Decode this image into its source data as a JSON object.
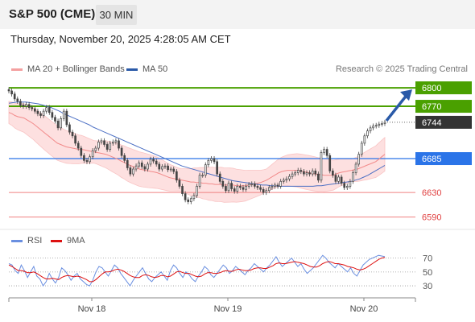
{
  "header": {
    "title": "S&P 500 (CME)",
    "timeframe": "30 MIN",
    "datetime": "Thursday, November 20, 2025 4:28:05 AM CET"
  },
  "legend": {
    "bb": "MA 20 + Bollinger Bands",
    "ma50": "MA 50",
    "rsi": "RSI",
    "rsi_ma": "9MA",
    "credit": "Research © 2025 Trading Central"
  },
  "colors": {
    "up": "#4a4a4a",
    "down": "#4a4a4a",
    "band": "#fde0e0",
    "ma20": "#f28a8a",
    "ma50": "#4b6fc4",
    "green": "#4aa000",
    "blue_level": "#2b74e8",
    "red_level": "#f08080",
    "last": "#333333",
    "rsi": "#6a8fe0",
    "rsi_ma": "#dd1111"
  },
  "chart_data": [
    {
      "type": "candlestick",
      "x_ticks": [
        "Nov 18",
        "Nov 19",
        "Nov 20"
      ],
      "ylim": [
        6583,
        6808
      ],
      "levels": [
        {
          "value": 6800,
          "label": "6800",
          "kind": "resistance"
        },
        {
          "value": 6770,
          "label": "6770",
          "kind": "resistance"
        },
        {
          "value": 6744,
          "label": "6744",
          "kind": "last"
        },
        {
          "value": 6685,
          "label": "6685",
          "kind": "pivot"
        },
        {
          "value": 6630,
          "label": "6630",
          "kind": "support"
        },
        {
          "value": 6590,
          "label": "6590",
          "kind": "support"
        }
      ],
      "closes": [
        6795,
        6790,
        6782,
        6778,
        6772,
        6770,
        6773,
        6768,
        6766,
        6762,
        6758,
        6755,
        6762,
        6768,
        6760,
        6752,
        6746,
        6735,
        6750,
        6762,
        6740,
        6728,
        6722,
        6710,
        6702,
        6690,
        6682,
        6680,
        6688,
        6698,
        6702,
        6712,
        6714,
        6708,
        6700,
        6710,
        6712,
        6714,
        6702,
        6690,
        6682,
        6670,
        6660,
        6668,
        6673,
        6678,
        6672,
        6668,
        6676,
        6684,
        6681,
        6676,
        6668,
        6672,
        6673,
        6667,
        6668,
        6664,
        6650,
        6640,
        6628,
        6618,
        6615,
        6620,
        6625,
        6640,
        6658,
        6658,
        6675,
        6682,
        6685,
        6680,
        6660,
        6648,
        6640,
        6633,
        6645,
        6636,
        6632,
        6640,
        6638,
        6635,
        6640,
        6643,
        6644,
        6640,
        6638,
        6635,
        6630,
        6633,
        6638,
        6640,
        6642,
        6640,
        6648,
        6650,
        6652,
        6656,
        6660,
        6662,
        6666,
        6664,
        6660,
        6662,
        6660,
        6665,
        6660,
        6650,
        6695,
        6700,
        6690,
        6665,
        6658,
        6648,
        6655,
        6645,
        6638,
        6640,
        6648,
        6662,
        6676,
        6692,
        6710,
        6722,
        6730,
        6735,
        6738,
        6739,
        6741,
        6742,
        6744
      ],
      "ma20": [
        6760,
        6758,
        6755,
        6753,
        6752,
        6751,
        6748,
        6745,
        6742,
        6738,
        6734,
        6730,
        6726,
        6722,
        6718,
        6714,
        6710,
        6708,
        6706,
        6704,
        6703,
        6702,
        6701,
        6700,
        6700,
        6699,
        6698,
        6697,
        6696,
        6695,
        6694,
        6693,
        6692,
        6690,
        6688,
        6686,
        6684,
        6681,
        6679,
        6676,
        6674,
        6672,
        6670,
        6668,
        6667,
        6666,
        6665,
        6664,
        6663,
        6662,
        6660,
        6658,
        6656,
        6654,
        6653,
        6652,
        6651,
        6650,
        6649,
        6648,
        6647,
        6647,
        6646,
        6646,
        6645,
        6645,
        6644,
        6644,
        6643,
        6643,
        6643,
        6642,
        6642,
        6642,
        6642,
        6641,
        6641,
        6641,
        6641,
        6642,
        6643,
        6644,
        6645,
        6646,
        6648,
        6650,
        6653,
        6656,
        6659,
        6662,
        6664,
        6665,
        6666,
        6666,
        6666,
        6666,
        6665,
        6664,
        6663,
        6662,
        6661,
        6660,
        6659,
        6659,
        6658,
        6658,
        6658,
        6658,
        6660,
        6662,
        6663,
        6664,
        6665,
        6666,
        6667,
        6668,
        6670,
        6672,
        6674,
        6676,
        6678,
        6680,
        6684,
        6688,
        6692
      ],
      "ma50": [
        6775,
        6776,
        6777,
        6777,
        6777,
        6776,
        6775,
        6774,
        6772,
        6770,
        6768,
        6765,
        6762,
        6758,
        6755,
        6752,
        6749,
        6746,
        6743,
        6740,
        6736,
        6733,
        6730,
        6727,
        6724,
        6721,
        6718,
        6715,
        6712,
        6709,
        6706,
        6703,
        6700,
        6697,
        6694,
        6691,
        6688,
        6685,
        6682,
        6679,
        6676,
        6673,
        6671,
        6669,
        6667,
        6665,
        6663,
        6661,
        6659,
        6657,
        6655,
        6653,
        6651,
        6649,
        6648,
        6647,
        6646,
        6645,
        6644,
        6643,
        6642,
        6642,
        6641,
        6641,
        6640,
        6640,
        6640,
        6640,
        6640,
        6640,
        6640,
        6640,
        6640,
        6641,
        6641,
        6642,
        6643,
        6644,
        6645,
        6646,
        6647,
        6648,
        6650,
        6652,
        6655,
        6658,
        6662,
        6666,
        6670,
        6674
      ]
    },
    {
      "type": "line",
      "name_series": [
        "RSI",
        "9MA"
      ],
      "y_ticks": [
        70,
        50,
        30
      ],
      "ylim": [
        15,
        80
      ],
      "rsi": [
        62,
        60,
        52,
        48,
        60,
        52,
        42,
        50,
        58,
        44,
        40,
        30,
        36,
        48,
        40,
        34,
        42,
        56,
        52,
        46,
        38,
        44,
        48,
        40,
        36,
        32,
        30,
        38,
        50,
        58,
        56,
        50,
        44,
        52,
        60,
        56,
        48,
        42,
        36,
        30,
        38,
        44,
        50,
        56,
        48,
        40,
        36,
        42,
        46,
        50,
        44,
        38,
        52,
        60,
        56,
        48,
        42,
        50,
        46,
        40,
        36,
        44,
        50,
        58,
        54,
        46,
        42,
        48,
        54,
        60,
        56,
        48,
        52,
        58,
        54,
        50,
        46,
        52,
        56,
        62,
        58,
        54,
        50,
        56,
        60,
        66,
        72,
        64,
        58,
        62,
        66,
        70,
        64,
        58,
        62,
        54,
        48,
        52,
        56,
        62,
        68,
        74,
        70,
        64,
        60,
        56,
        62,
        58,
        54,
        50,
        56,
        48,
        44,
        52,
        60,
        64,
        68,
        70,
        72,
        74,
        73,
        72
      ],
      "rsi_ma": [
        60,
        58,
        55,
        52,
        52,
        51,
        49,
        49,
        50,
        48,
        45,
        42,
        40,
        40,
        41,
        40,
        39,
        42,
        44,
        45,
        44,
        43,
        44,
        43,
        41,
        39,
        36,
        36,
        39,
        43,
        47,
        50,
        50,
        51,
        53,
        54,
        53,
        51,
        48,
        45,
        43,
        42,
        42,
        45,
        46,
        45,
        43,
        42,
        43,
        45,
        45,
        43,
        44,
        47,
        50,
        51,
        49,
        48,
        48,
        46,
        44,
        43,
        44,
        47,
        49,
        49,
        48,
        48,
        49,
        51,
        52,
        51,
        51,
        53,
        54,
        53,
        52,
        52,
        53,
        55,
        56,
        56,
        55,
        55,
        57,
        59,
        62,
        63,
        62,
        62,
        63,
        64,
        65,
        64,
        63,
        62,
        60,
        58,
        57,
        57,
        59,
        62,
        64,
        65,
        64,
        62,
        62,
        61,
        60,
        58,
        57,
        56,
        54,
        53,
        54,
        56,
        59,
        62,
        65,
        68,
        70,
        71
      ]
    }
  ]
}
